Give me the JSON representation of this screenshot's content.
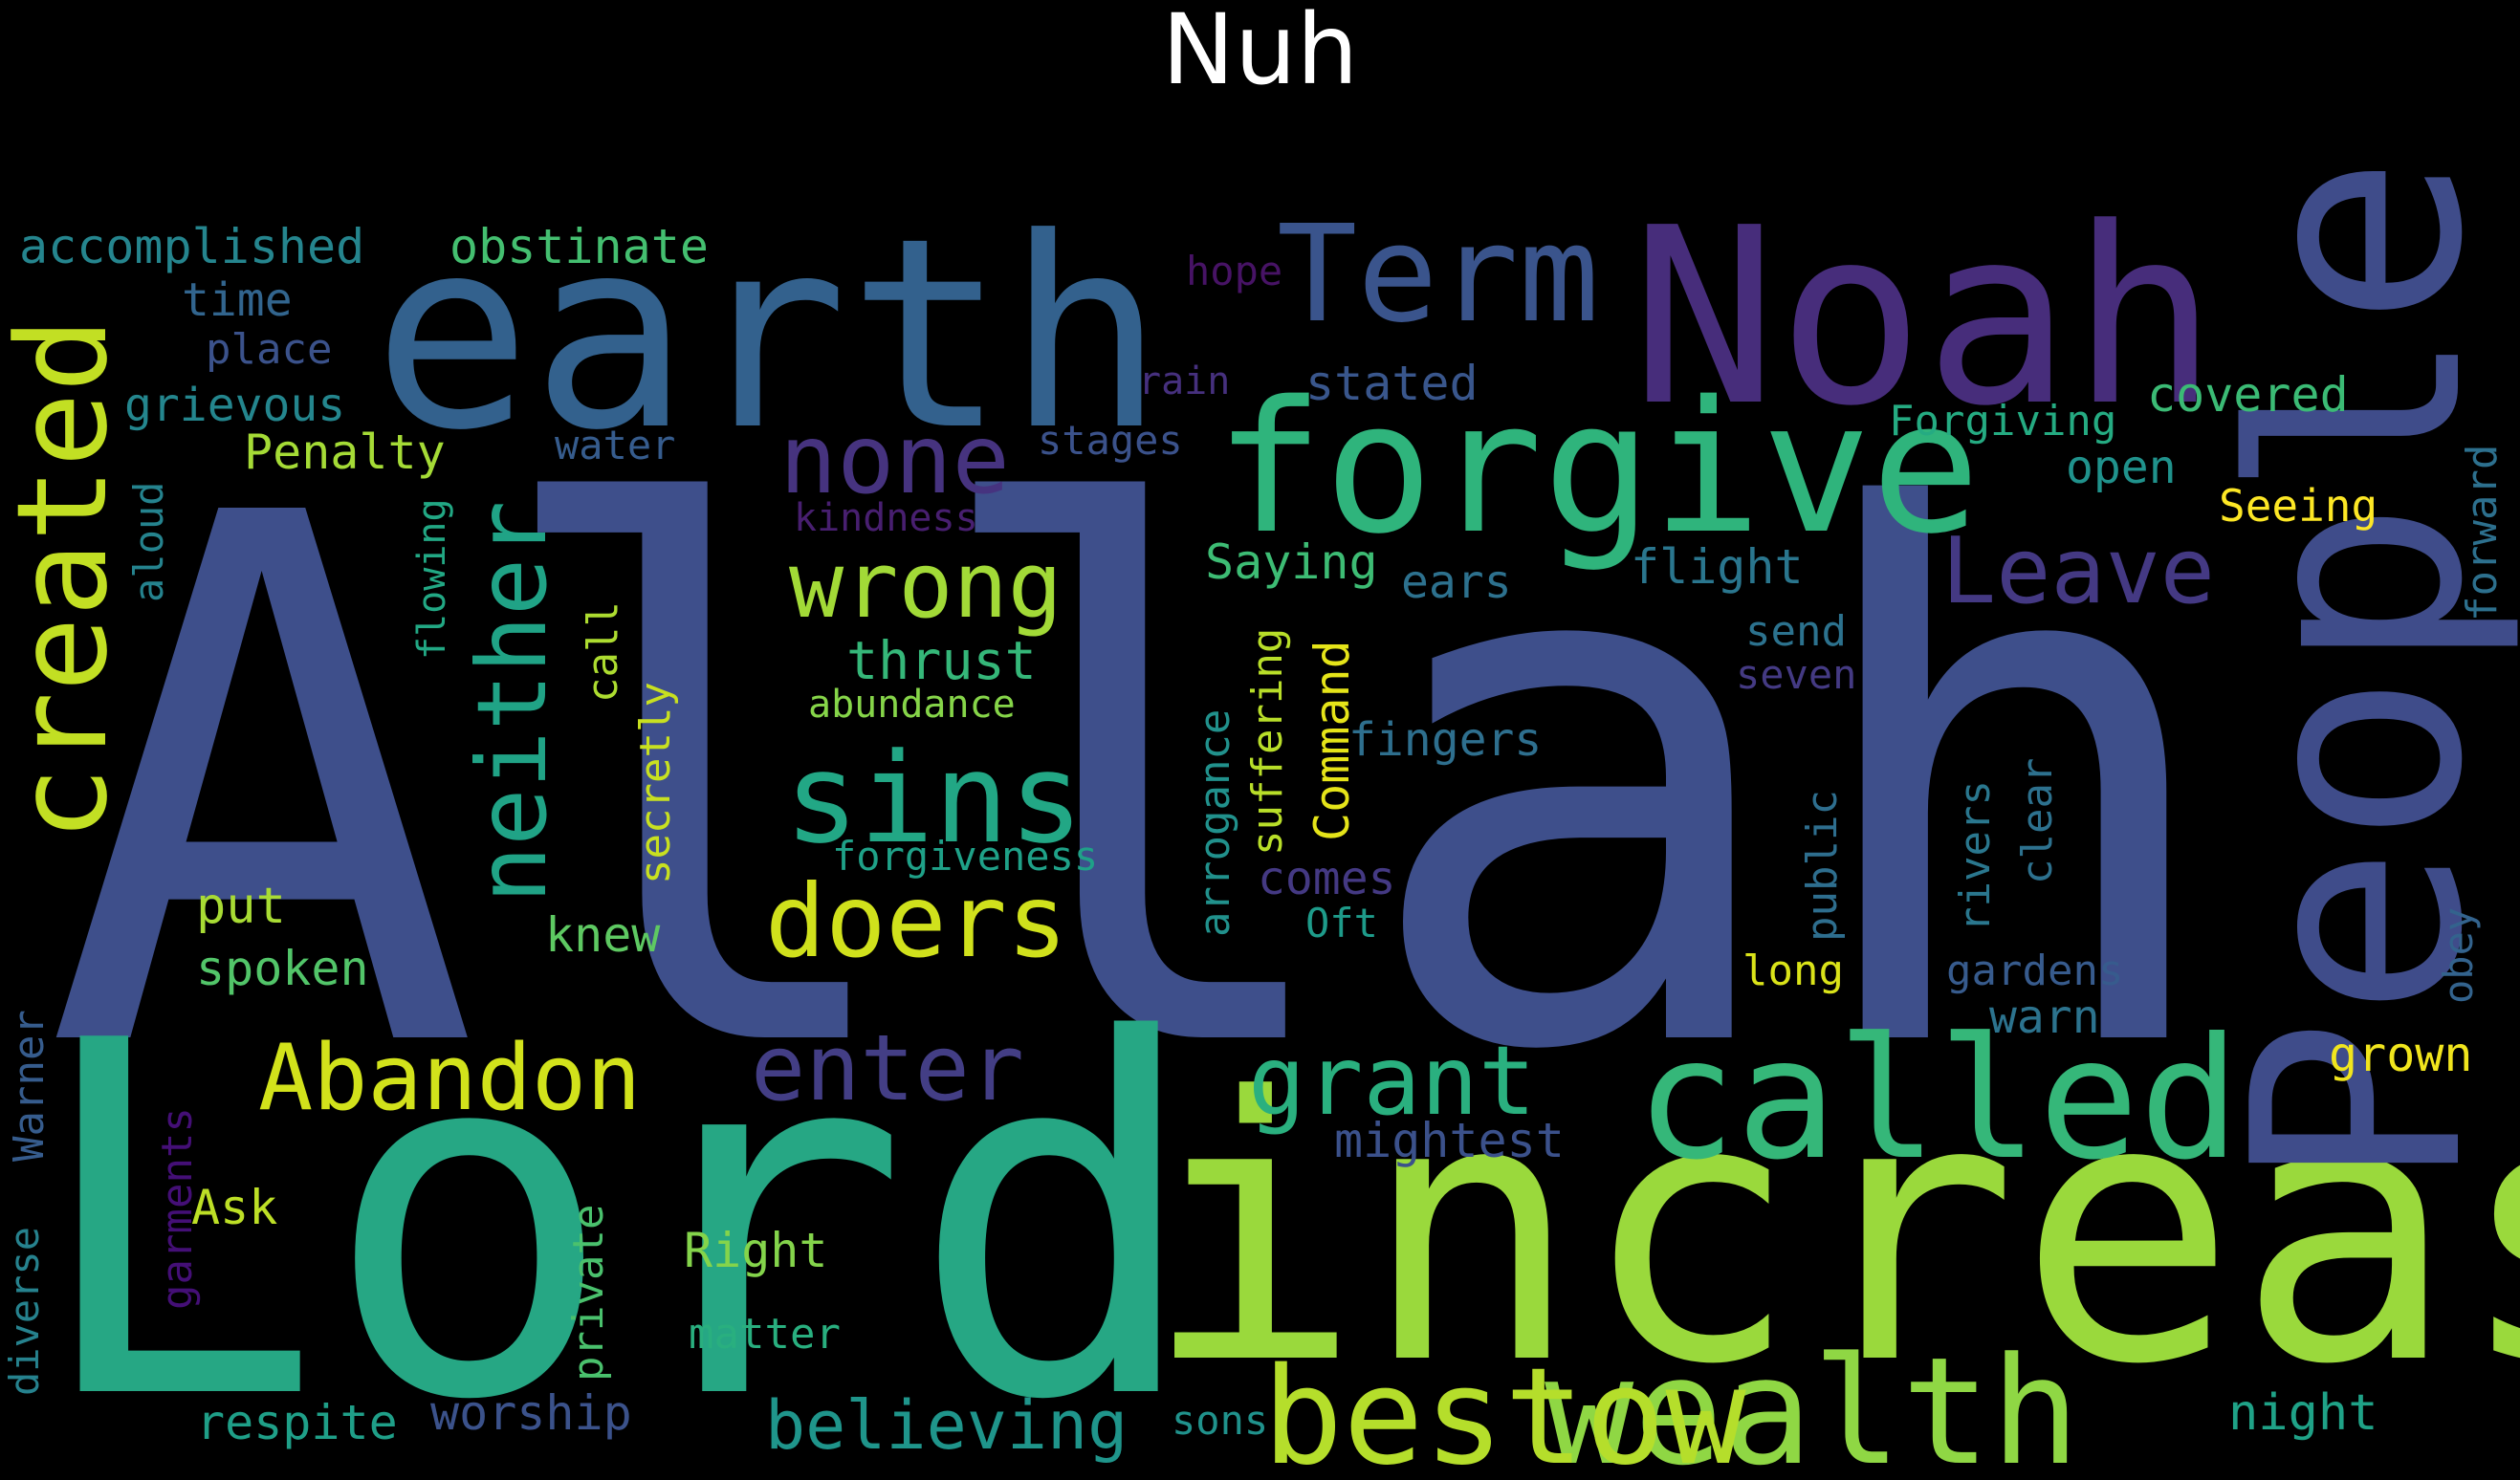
{
  "title": "Nuh",
  "words": [
    {
      "text": "Allah",
      "color": "#3e4f8b"
    },
    {
      "text": "Lord",
      "color": "#26a784"
    },
    {
      "text": "increase",
      "color": "#9ad93c"
    },
    {
      "text": "People",
      "color": "#3f4c8a"
    },
    {
      "text": "earth",
      "color": "#33618d"
    },
    {
      "text": "Noah",
      "color": "#472d7b"
    },
    {
      "text": "forgive",
      "color": "#2fb47c"
    },
    {
      "text": "called",
      "color": "#35b779"
    },
    {
      "text": "Term",
      "color": "#3a548c"
    },
    {
      "text": "created",
      "color": "#c2df23"
    },
    {
      "text": "wealth",
      "color": "#8fd744"
    },
    {
      "text": "bestow",
      "color": "#b5de2b"
    },
    {
      "text": "sins",
      "color": "#22a785"
    },
    {
      "text": "neither",
      "color": "#20a386"
    },
    {
      "text": "doers",
      "color": "#d0e11c"
    },
    {
      "text": "wrong",
      "color": "#a2da37"
    },
    {
      "text": "none",
      "color": "#46337f"
    },
    {
      "text": "Leave",
      "color": "#443983"
    },
    {
      "text": "Abandon",
      "color": "#d2e21b"
    },
    {
      "text": "enter",
      "color": "#433e85"
    },
    {
      "text": "grant",
      "color": "#2ab07f"
    },
    {
      "text": "believing",
      "color": "#1f958b"
    },
    {
      "text": "accomplished",
      "color": "#25858e"
    },
    {
      "text": "obstinate",
      "color": "#44bf70"
    },
    {
      "text": "time",
      "color": "#32658e"
    },
    {
      "text": "place",
      "color": "#3b528b"
    },
    {
      "text": "grievous",
      "color": "#24868e"
    },
    {
      "text": "Penalty",
      "color": "#a5db36"
    },
    {
      "text": "water",
      "color": "#365c8d"
    },
    {
      "text": "stages",
      "color": "#3b528b"
    },
    {
      "text": "rain",
      "color": "#46307e"
    },
    {
      "text": "hope",
      "color": "#471365"
    },
    {
      "text": "stated",
      "color": "#39568c"
    },
    {
      "text": "covered",
      "color": "#3bbb75"
    },
    {
      "text": "Forgiving",
      "color": "#25ab82"
    },
    {
      "text": "open",
      "color": "#20928c"
    },
    {
      "text": "Seeing",
      "color": "#fde725"
    },
    {
      "text": "forward",
      "color": "#2d708e"
    },
    {
      "text": "aloud",
      "color": "#25838e"
    },
    {
      "text": "flowing",
      "color": "#22a884"
    },
    {
      "text": "kindness",
      "color": "#481f70"
    },
    {
      "text": "Saying",
      "color": "#3dbc74"
    },
    {
      "text": "ears",
      "color": "#2d718e"
    },
    {
      "text": "flight",
      "color": "#2a768e"
    },
    {
      "text": "send",
      "color": "#2c728e"
    },
    {
      "text": "seven",
      "color": "#443a83"
    },
    {
      "text": "thrust",
      "color": "#35b779"
    },
    {
      "text": "abundance",
      "color": "#86d549"
    },
    {
      "text": "call",
      "color": "#addc30"
    },
    {
      "text": "secretly",
      "color": "#c8e020"
    },
    {
      "text": "arrogance",
      "color": "#21918c"
    },
    {
      "text": "suffering",
      "color": "#b8de29"
    },
    {
      "text": "Command",
      "color": "#e5e419"
    },
    {
      "text": "fingers",
      "color": "#2e6f8e"
    },
    {
      "text": "public",
      "color": "#2e6e8e"
    },
    {
      "text": "rivers",
      "color": "#2a778e"
    },
    {
      "text": "clear",
      "color": "#2d718e"
    },
    {
      "text": "obey",
      "color": "#33638d"
    },
    {
      "text": "forgiveness",
      "color": "#1fa188"
    },
    {
      "text": "comes",
      "color": "#443983"
    },
    {
      "text": "Oft",
      "color": "#1e9b8a"
    },
    {
      "text": "put",
      "color": "#a8db34"
    },
    {
      "text": "knew",
      "color": "#5ec962"
    },
    {
      "text": "spoken",
      "color": "#52c569"
    },
    {
      "text": "long",
      "color": "#dae319"
    },
    {
      "text": "gardens",
      "color": "#375b8d"
    },
    {
      "text": "warn",
      "color": "#2c738e"
    },
    {
      "text": "grown",
      "color": "#f1e51d"
    },
    {
      "text": "mightest",
      "color": "#3b518b"
    },
    {
      "text": "Warner",
      "color": "#365c8d"
    },
    {
      "text": "garments",
      "color": "#440f76"
    },
    {
      "text": "Ask",
      "color": "#bddf26"
    },
    {
      "text": "diverse",
      "color": "#26828e"
    },
    {
      "text": "private",
      "color": "#4ac16d"
    },
    {
      "text": "Right",
      "color": "#84d44b"
    },
    {
      "text": "matter",
      "color": "#29af7f"
    },
    {
      "text": "respite",
      "color": "#1f9f88"
    },
    {
      "text": "worship",
      "color": "#3b528b"
    },
    {
      "text": "sons",
      "color": "#20928c"
    },
    {
      "text": "night",
      "color": "#1fa287"
    }
  ]
}
